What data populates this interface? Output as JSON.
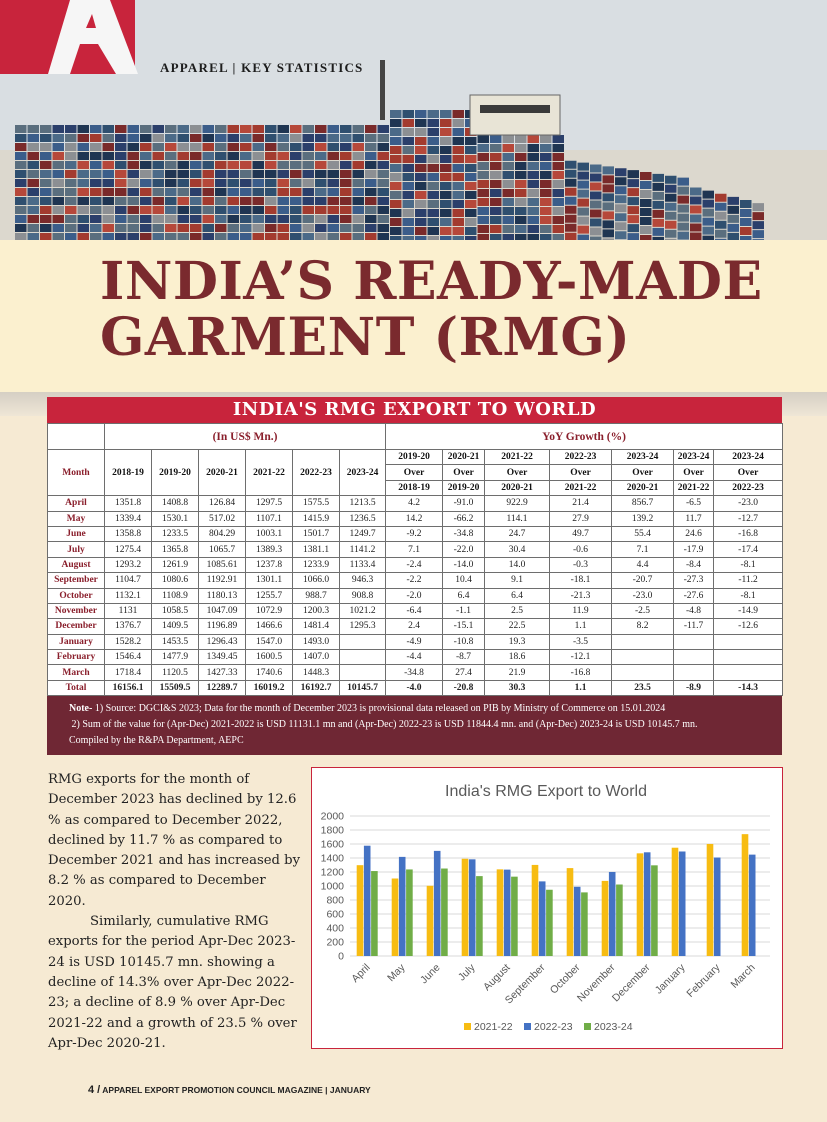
{
  "header": {
    "section_label": "APPAREL | KEY STATISTICS",
    "logo_letter": "A",
    "colors": {
      "brand_red": "#c8243c",
      "title_maroon": "#7a2a2e"
    }
  },
  "title": {
    "line1": "INDIA’S READY-MADE",
    "line2": "GARMENT (RMG)"
  },
  "table": {
    "caption": "INDIA'S RMG EXPORT TO WORLD",
    "group_usd": "(In US$ Mn.)",
    "group_yoy": "YoY Growth (%)",
    "month_header": "Month",
    "year_headers": [
      "2018-19",
      "2019-20",
      "2020-21",
      "2021-22",
      "2022-23",
      "2023-24"
    ],
    "yoy_headers": [
      [
        "2019-20",
        "Over",
        "2018-19"
      ],
      [
        "2020-21",
        "Over",
        "2019-20"
      ],
      [
        "2021-22",
        "Over",
        "2020-21"
      ],
      [
        "2022-23",
        "Over",
        "2021-22"
      ],
      [
        "2023-24",
        "Over",
        "2020-21"
      ],
      [
        "2023-24",
        "Over",
        "2021-22"
      ],
      [
        "2023-24",
        "Over",
        "2022-23"
      ]
    ],
    "rows": [
      [
        "April",
        "1351.8",
        "1408.8",
        "126.84",
        "1297.5",
        "1575.5",
        "1213.5",
        "4.2",
        "-91.0",
        "922.9",
        "21.4",
        "856.7",
        "-6.5",
        "-23.0"
      ],
      [
        "May",
        "1339.4",
        "1530.1",
        "517.02",
        "1107.1",
        "1415.9",
        "1236.5",
        "14.2",
        "-66.2",
        "114.1",
        "27.9",
        "139.2",
        "11.7",
        "-12.7"
      ],
      [
        "June",
        "1358.8",
        "1233.5",
        "804.29",
        "1003.1",
        "1501.7",
        "1249.7",
        "-9.2",
        "-34.8",
        "24.7",
        "49.7",
        "55.4",
        "24.6",
        "-16.8"
      ],
      [
        "July",
        "1275.4",
        "1365.8",
        "1065.7",
        "1389.3",
        "1381.1",
        "1141.2",
        "7.1",
        "-22.0",
        "30.4",
        "-0.6",
        "7.1",
        "-17.9",
        "-17.4"
      ],
      [
        "August",
        "1293.2",
        "1261.9",
        "1085.61",
        "1237.8",
        "1233.9",
        "1133.4",
        "-2.4",
        "-14.0",
        "14.0",
        "-0.3",
        "4.4",
        "-8.4",
        "-8.1"
      ],
      [
        "September",
        "1104.7",
        "1080.6",
        "1192.91",
        "1301.1",
        "1066.0",
        "946.3",
        "-2.2",
        "10.4",
        "9.1",
        "-18.1",
        "-20.7",
        "-27.3",
        "-11.2"
      ],
      [
        "October",
        "1132.1",
        "1108.9",
        "1180.13",
        "1255.7",
        "988.7",
        "908.8",
        "-2.0",
        "6.4",
        "6.4",
        "-21.3",
        "-23.0",
        "-27.6",
        "-8.1"
      ],
      [
        "November",
        "1131",
        "1058.5",
        "1047.09",
        "1072.9",
        "1200.3",
        "1021.2",
        "-6.4",
        "-1.1",
        "2.5",
        "11.9",
        "-2.5",
        "-4.8",
        "-14.9"
      ],
      [
        "December",
        "1376.7",
        "1409.5",
        "1196.89",
        "1466.6",
        "1481.4",
        "1295.3",
        "2.4",
        "-15.1",
        "22.5",
        "1.1",
        "8.2",
        "-11.7",
        "-12.6"
      ],
      [
        "January",
        "1528.2",
        "1453.5",
        "1296.43",
        "1547.0",
        "1493.0",
        "",
        "-4.9",
        "-10.8",
        "19.3",
        "-3.5",
        "",
        "",
        ""
      ],
      [
        "February",
        "1546.4",
        "1477.9",
        "1349.45",
        "1600.5",
        "1407.0",
        "",
        "-4.4",
        "-8.7",
        "18.6",
        "-12.1",
        "",
        "",
        ""
      ],
      [
        "March",
        "1718.4",
        "1120.5",
        "1427.33",
        "1740.6",
        "1448.3",
        "",
        "-34.8",
        "27.4",
        "21.9",
        "-16.8",
        "",
        "",
        ""
      ],
      [
        "Total",
        "16156.1",
        "15509.5",
        "12289.7",
        "16019.2",
        "16192.7",
        "10145.7",
        "-4.0",
        "-20.8",
        "30.3",
        "1.1",
        "23.5",
        "-8.9",
        "-14.3"
      ]
    ],
    "notes": {
      "label": "Note-",
      "line1": " 1) Source: DGCI&S 2023; Data for the month of December 2023 is provisional data released on PIB by Ministry of Commerce on 15.01.2024",
      "line2": "2) Sum of the value for (Apr-Dec) 2021-2022 is USD 11131.1 mn and (Apr-Dec) 2022-23 is USD 11844.4 mn. and (Apr-Dec) 2023-24 is USD 10145.7 mn.",
      "line3": "Compiled by the R&PA Department, AEPC"
    }
  },
  "body": {
    "para1": "RMG exports for the month of December 2023 has declined by 12.6 % as compared to December 2022, declined by 11.7 % as compared to December 2021 and has increased by 8.2 % as compared to December 2020.",
    "para2": "Similarly, cumulative RMG exports for the period Apr-Dec 2023-24 is USD 10145.7 mn. showing a decline of 14.3% over Apr-Dec 2022-23; a decline of 8.9 % over Apr-Dec 2021-22 and a growth of 23.5 % over Apr-Dec 2020-21."
  },
  "footer": {
    "page": "4 /",
    "text": "APPAREL EXPORT PROMOTION COUNCIL MAGAZINE | JANUARY"
  },
  "chart_data": {
    "type": "bar",
    "title": "India's RMG Export to World",
    "categories": [
      "April",
      "May",
      "June",
      "July",
      "August",
      "September",
      "October",
      "November",
      "December",
      "January",
      "February",
      "March"
    ],
    "series": [
      {
        "name": "2021-22",
        "color": "#f7bc12",
        "values": [
          1297.5,
          1107.1,
          1003.1,
          1389.3,
          1237.8,
          1301.1,
          1255.7,
          1072.9,
          1466.6,
          1547.0,
          1600.5,
          1740.6
        ]
      },
      {
        "name": "2022-23",
        "color": "#4472c4",
        "values": [
          1575.5,
          1415.9,
          1501.7,
          1381.1,
          1233.9,
          1066.0,
          988.7,
          1200.3,
          1481.4,
          1493.0,
          1407.0,
          1448.3
        ]
      },
      {
        "name": "2023-24",
        "color": "#70ad47",
        "values": [
          1213.5,
          1236.5,
          1249.7,
          1141.2,
          1133.4,
          946.3,
          908.8,
          1021.2,
          1295.3,
          null,
          null,
          null
        ]
      }
    ],
    "yticks": [
      "0",
      "200",
      "400",
      "600",
      "800",
      "1000",
      "1200",
      "1400",
      "1600",
      "1800",
      "2000"
    ],
    "ylim": [
      0,
      2000
    ],
    "grid": true,
    "legend": "bottom"
  }
}
